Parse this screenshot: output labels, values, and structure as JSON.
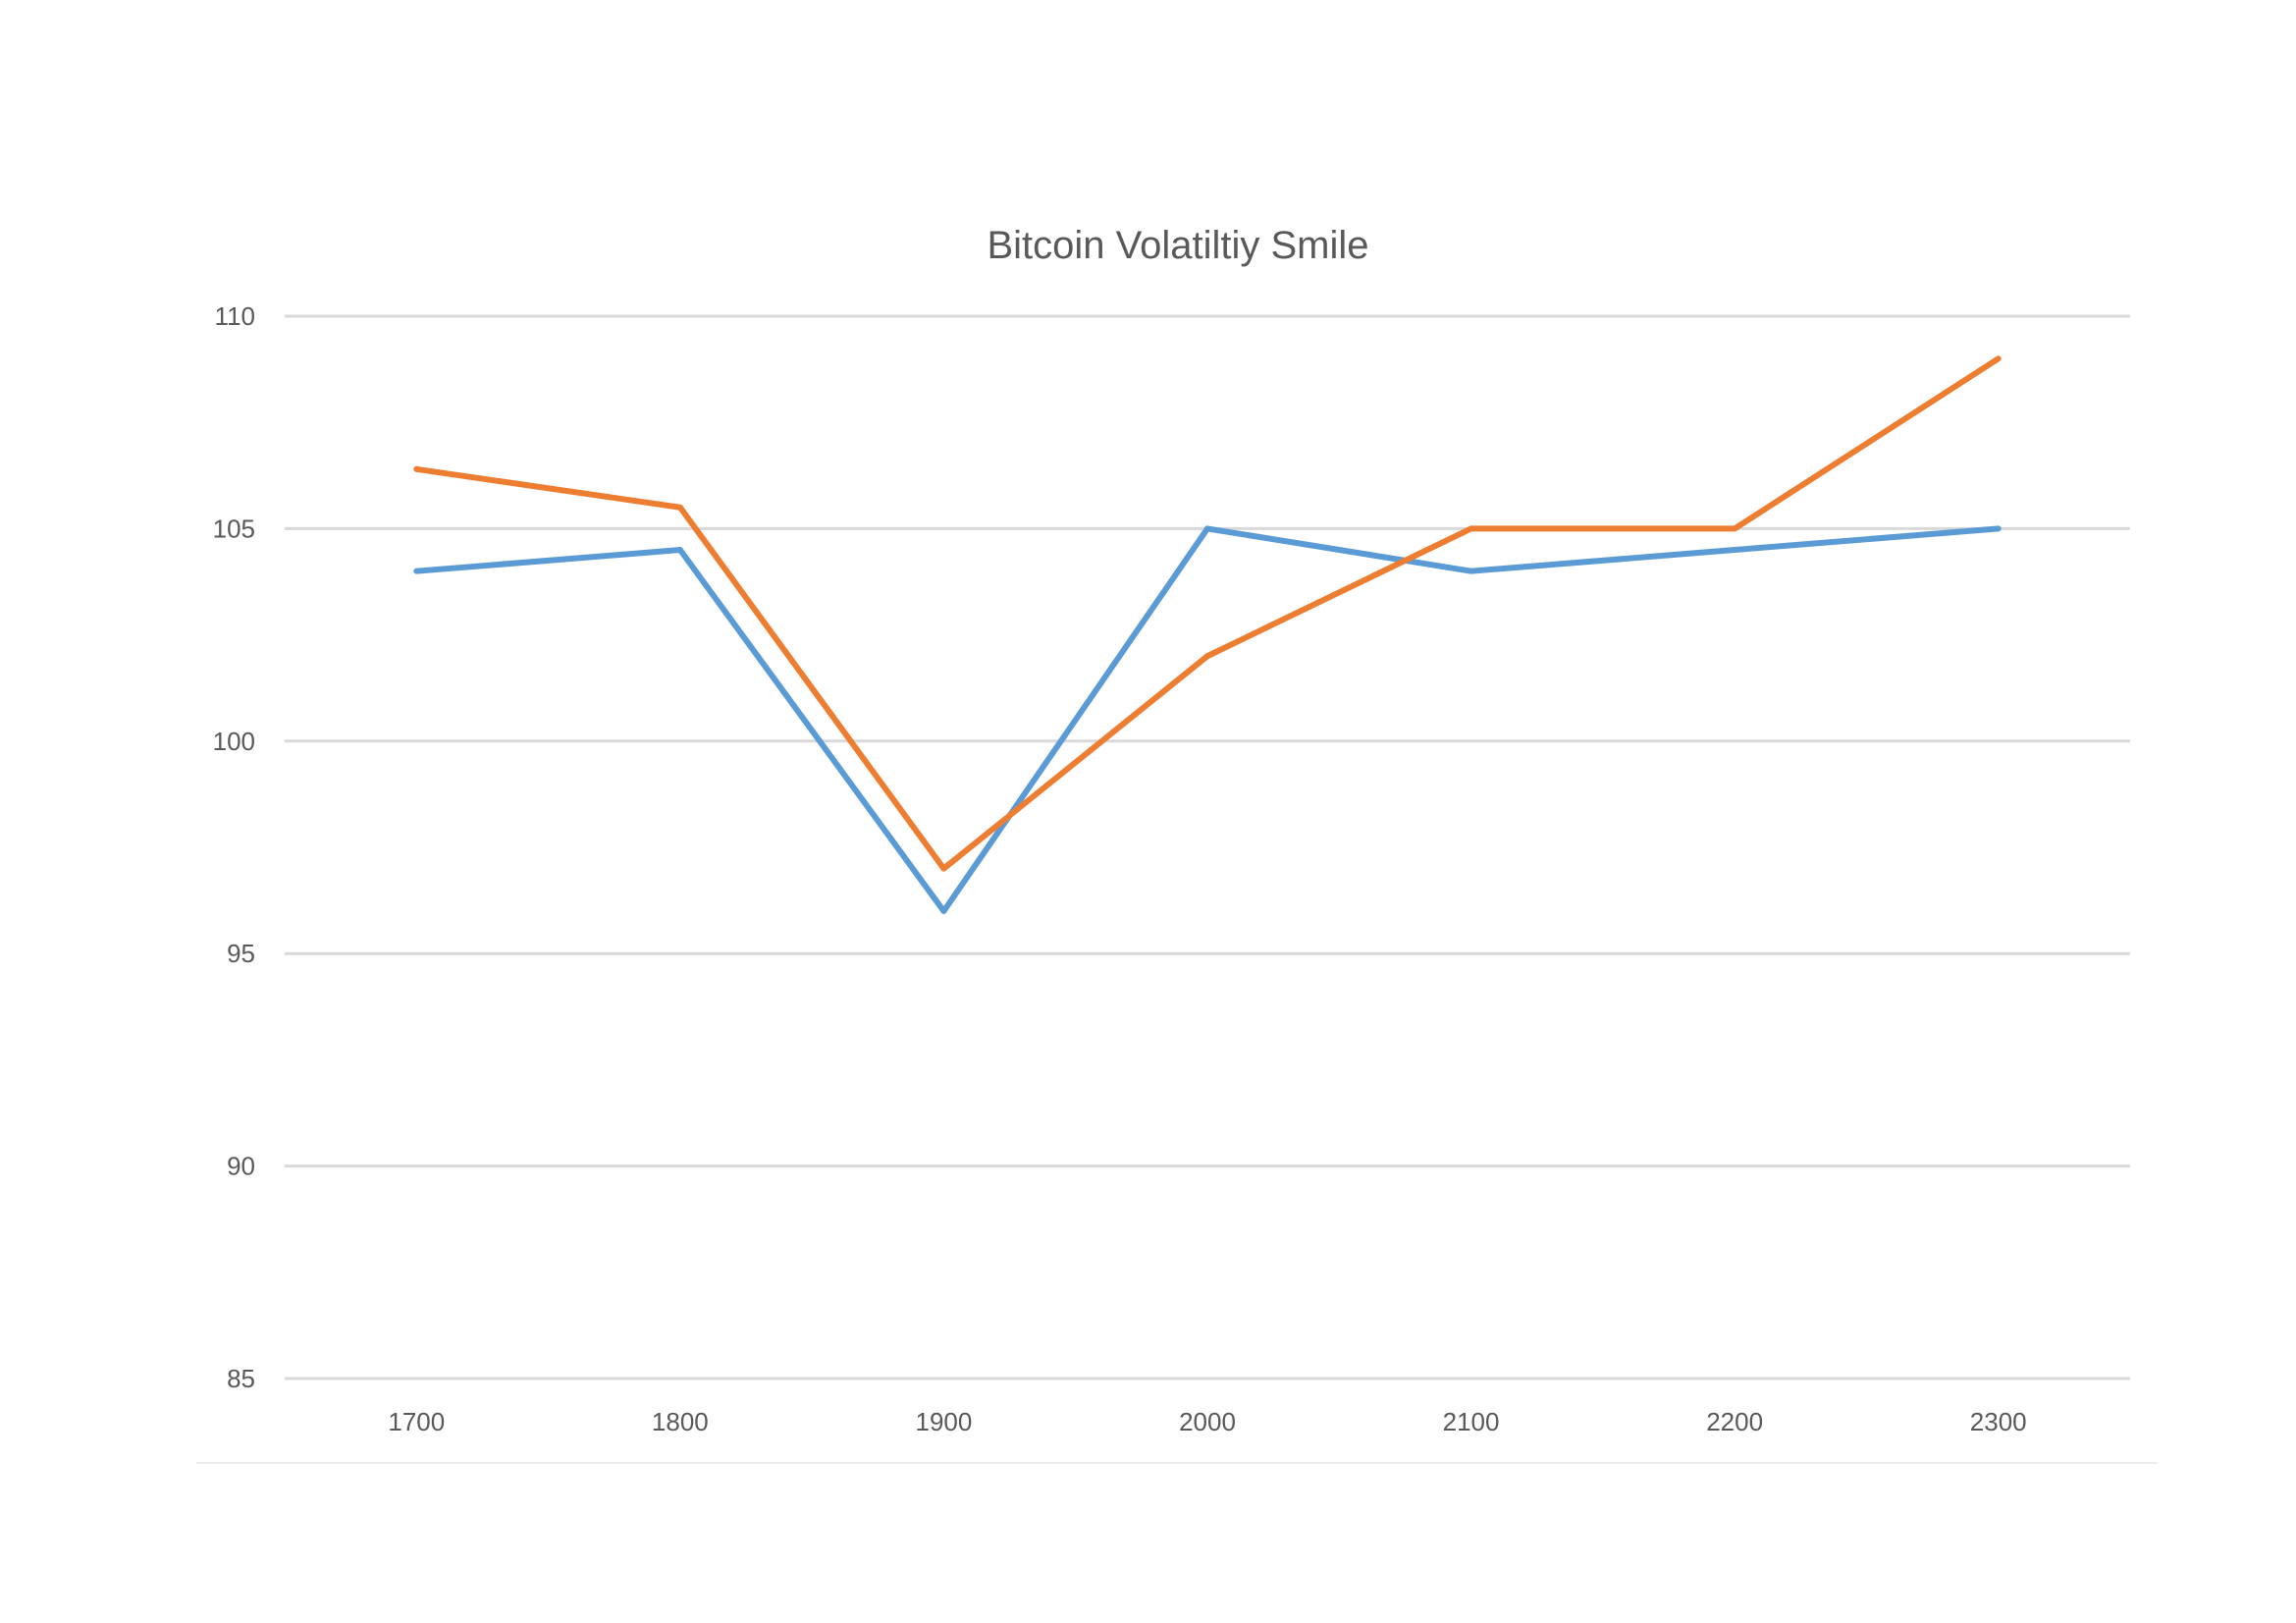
{
  "chart_data": {
    "type": "line",
    "title": "Bitcoin Volatiltiy Smile",
    "xlabel": "",
    "ylabel": "",
    "categories": [
      "1700",
      "1800",
      "1900",
      "2000",
      "2100",
      "2200",
      "2300"
    ],
    "ylim": [
      85,
      110
    ],
    "yticks": [
      "85",
      "90",
      "95",
      "100",
      "105",
      "110"
    ],
    "grid": true,
    "legend": "none",
    "series": [
      {
        "values": [
          104,
          104.5,
          96,
          105,
          104,
          104.5,
          105
        ],
        "color": "#5b9bd5"
      },
      {
        "values": [
          106.4,
          105.5,
          97,
          102,
          105,
          105,
          109
        ],
        "color": "#ed7d31"
      }
    ],
    "gridColor": "#d9d9d9",
    "textColor": "#595959"
  }
}
